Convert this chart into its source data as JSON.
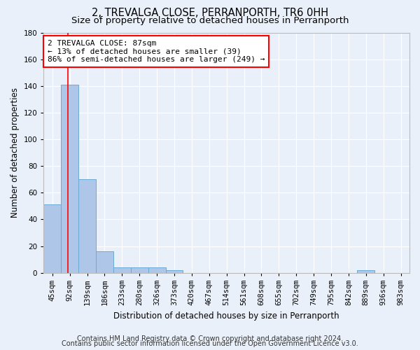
{
  "title": "2, TREVALGA CLOSE, PERRANPORTH, TR6 0HH",
  "subtitle": "Size of property relative to detached houses in Perranporth",
  "xlabel": "Distribution of detached houses by size in Perranporth",
  "ylabel": "Number of detached properties",
  "bins": [
    "45sqm",
    "92sqm",
    "139sqm",
    "186sqm",
    "233sqm",
    "280sqm",
    "326sqm",
    "373sqm",
    "420sqm",
    "467sqm",
    "514sqm",
    "561sqm",
    "608sqm",
    "655sqm",
    "702sqm",
    "749sqm",
    "795sqm",
    "842sqm",
    "889sqm",
    "936sqm",
    "983sqm"
  ],
  "values": [
    51,
    141,
    70,
    16,
    4,
    4,
    4,
    2,
    0,
    0,
    0,
    0,
    0,
    0,
    0,
    0,
    0,
    0,
    2,
    0,
    0
  ],
  "bar_color": "#aec6e8",
  "bar_edge_color": "#6aaad4",
  "annotation_box_text_line1": "2 TREVALGA CLOSE: 87sqm",
  "annotation_box_text_line2": "← 13% of detached houses are smaller (39)",
  "annotation_box_text_line3": "86% of semi-detached houses are larger (249) →",
  "annotation_box_edge_color": "red",
  "vline_color": "red",
  "ylim": [
    0,
    180
  ],
  "yticks": [
    0,
    20,
    40,
    60,
    80,
    100,
    120,
    140,
    160,
    180
  ],
  "bg_color": "#eaf0f9",
  "grid_color": "#ffffff",
  "footer_line1": "Contains HM Land Registry data © Crown copyright and database right 2024.",
  "footer_line2": "Contains public sector information licensed under the Open Government Licence v3.0.",
  "title_fontsize": 10.5,
  "subtitle_fontsize": 9.5,
  "xlabel_fontsize": 8.5,
  "ylabel_fontsize": 8.5,
  "tick_fontsize": 7.5,
  "annotation_fontsize": 8,
  "footer_fontsize": 7
}
